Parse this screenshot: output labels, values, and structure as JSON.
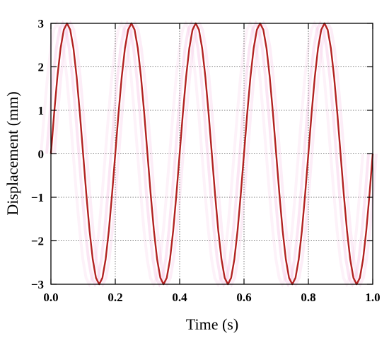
{
  "chart_data": {
    "type": "line",
    "title": "",
    "xlabel": "Time (s)",
    "ylabel": "Displacement (mm)",
    "xlim": [
      0,
      1.0
    ],
    "ylim": [
      -3,
      3
    ],
    "x_ticks": [
      "0.0",
      "0.2",
      "0.4",
      "0.6",
      "0.8",
      "1.0"
    ],
    "y_ticks": [
      "3",
      "2",
      "1",
      "0",
      "−1",
      "−2",
      "−3"
    ],
    "grid": true,
    "legend": "none",
    "line_color": "#b22222",
    "ghost_color": "#f4b6e0",
    "series": [
      {
        "function": "3*sin(2*pi*5*t)",
        "amplitude_mm": 3,
        "frequency_hz": 5,
        "sample_step_s": 0.01,
        "x": [
          0.0,
          0.05,
          0.1,
          0.15,
          0.2,
          0.25,
          0.3,
          0.35,
          0.4,
          0.45,
          0.5,
          0.55,
          0.6,
          0.65,
          0.7,
          0.75,
          0.8,
          0.85,
          0.9,
          0.95,
          1.0
        ],
        "y": [
          0,
          3,
          0,
          -3,
          0,
          3,
          0,
          -3,
          0,
          3,
          0,
          -3,
          0,
          3,
          0,
          -3,
          0,
          3,
          0,
          -3,
          0
        ]
      }
    ]
  }
}
